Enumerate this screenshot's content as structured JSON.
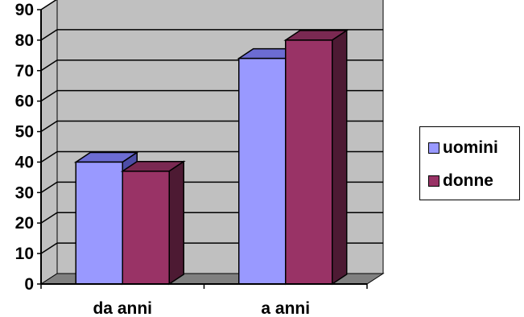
{
  "chart_data": {
    "type": "bar",
    "title": "",
    "xlabel": "",
    "ylabel": "",
    "categories": [
      "da anni",
      "a anni"
    ],
    "series": [
      {
        "name": "uomini",
        "values": [
          40,
          74
        ]
      },
      {
        "name": "donne",
        "values": [
          37,
          80
        ]
      }
    ],
    "ylim": [
      0,
      90
    ],
    "yticks": [
      "0",
      "10",
      "20",
      "30",
      "40",
      "50",
      "60",
      "70",
      "80",
      "90"
    ],
    "grid": true,
    "legend": "right",
    "colors": {
      "uomini": "#9999ff",
      "uomini_top": "#6c6cd2",
      "uomini_side": "#4d4da6",
      "donne": "#993366",
      "donne_top": "#7a2952",
      "donne_side": "#4d1a33",
      "wall": "#c0c0c0",
      "floor": "#808080"
    }
  }
}
